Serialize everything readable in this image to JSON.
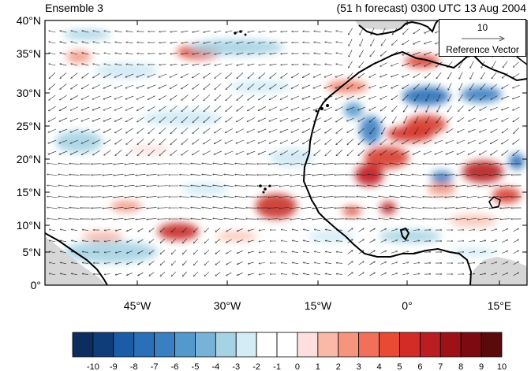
{
  "title_left": "Ensemble 3",
  "title_right": "(51 h forecast) 0300 UTC 13 Aug 2004",
  "reference_vector": {
    "value": "10",
    "label": "Reference Vector"
  },
  "axes": {
    "y_ticks": [
      "40°N",
      "35°N",
      "30°N",
      "25°N",
      "20°N",
      "15°N",
      "10°N",
      "5°N",
      "0°"
    ],
    "x_ticks": [
      "45°W",
      "30°W",
      "15°W",
      "0°",
      "15°E"
    ]
  },
  "colorbar": {
    "labels": [
      "-10",
      "-9",
      "-8",
      "-7",
      "-6",
      "-5",
      "-4",
      "-3",
      "-2",
      "-1",
      "0",
      "1",
      "2",
      "3",
      "4",
      "5",
      "6",
      "7",
      "8",
      "9",
      "10"
    ],
    "colors": [
      "#0c2d5e",
      "#0f3d7a",
      "#1a5ca6",
      "#2a6fb8",
      "#3a7fc2",
      "#5499cc",
      "#77b3d9",
      "#a5d3e3",
      "#d3ecf6",
      "#ffffff",
      "#ffffff",
      "#fde0dd",
      "#f9b9a6",
      "#f6957d",
      "#f2705a",
      "#e94a34",
      "#d32c26",
      "#bb1d22",
      "#9e1217",
      "#7d0a10",
      "#5a0a0a"
    ]
  },
  "colors": {
    "land_mask": "#d6d6d6",
    "coast": "#000000",
    "arrow": "#222222"
  }
}
